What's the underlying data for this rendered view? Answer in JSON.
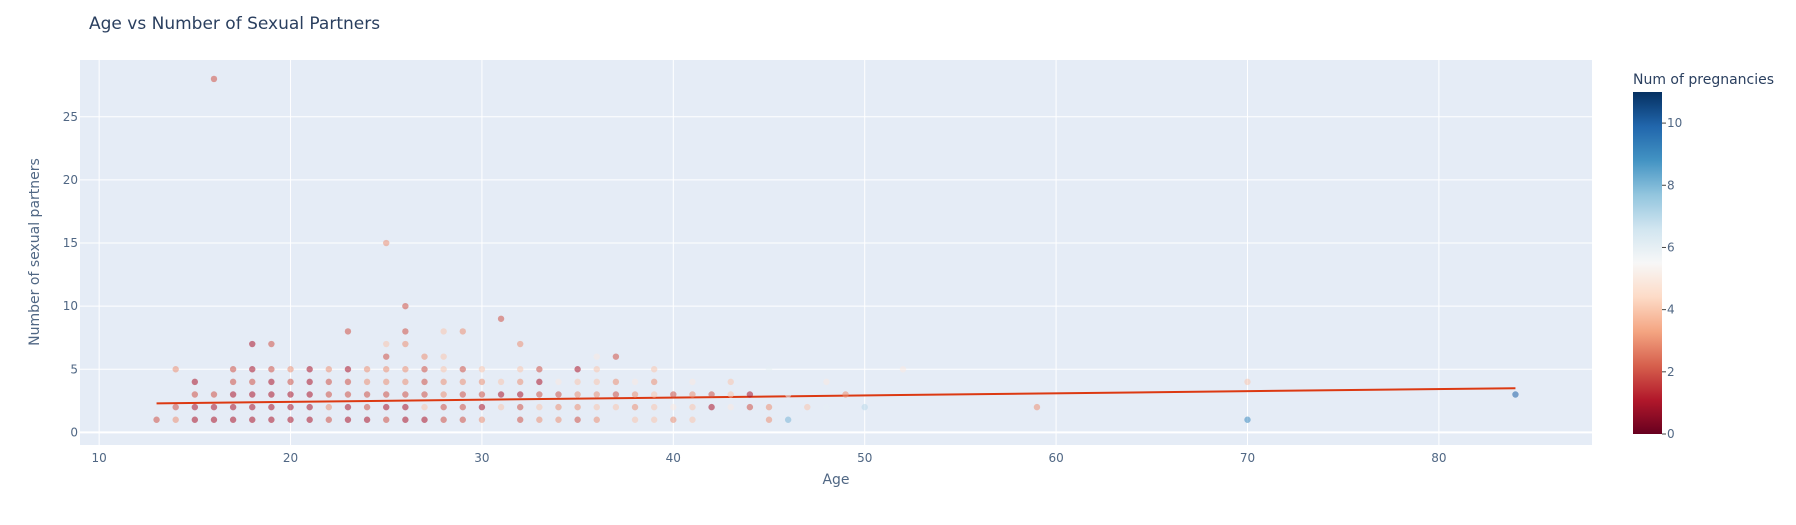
{
  "chart_data": {
    "type": "scatter",
    "title": "Age vs Number of Sexual Partners",
    "xlabel": "Age",
    "ylabel": "Number of sexual partners",
    "xlim": [
      9,
      88
    ],
    "ylim": [
      -1,
      29.5
    ],
    "x_ticks": [
      10,
      20,
      30,
      40,
      50,
      60,
      70,
      80
    ],
    "y_ticks": [
      0,
      5,
      10,
      15,
      20,
      25
    ],
    "grid": true,
    "colorbar": {
      "title": "Num of pregnancies",
      "range": [
        0,
        11
      ],
      "ticks": [
        0,
        2,
        4,
        6,
        8,
        10
      ],
      "colorscale": "RdBu",
      "stops": [
        "#67001f",
        "#b2182b",
        "#d6604d",
        "#f4a582",
        "#fddbc7",
        "#f7f7f7",
        "#d1e5f0",
        "#92c5de",
        "#4393c3",
        "#2166ac",
        "#053061"
      ]
    },
    "trendline": {
      "x": [
        13,
        84
      ],
      "y": [
        2.3,
        3.5
      ],
      "color": "#dc3912"
    },
    "points": [
      [
        13,
        1,
        2
      ],
      [
        14,
        1,
        3
      ],
      [
        14,
        2,
        2
      ],
      [
        14,
        5,
        3
      ],
      [
        15,
        1,
        1
      ],
      [
        15,
        2,
        1
      ],
      [
        15,
        3,
        2
      ],
      [
        15,
        4,
        1
      ],
      [
        16,
        1,
        1
      ],
      [
        16,
        2,
        1
      ],
      [
        16,
        3,
        2
      ],
      [
        16,
        28,
        2
      ],
      [
        17,
        1,
        1
      ],
      [
        17,
        2,
        1
      ],
      [
        17,
        3,
        1
      ],
      [
        17,
        4,
        2
      ],
      [
        17,
        5,
        2
      ],
      [
        18,
        1,
        1
      ],
      [
        18,
        2,
        1
      ],
      [
        18,
        3,
        1
      ],
      [
        18,
        4,
        2
      ],
      [
        18,
        5,
        1
      ],
      [
        18,
        7,
        1
      ],
      [
        19,
        1,
        1
      ],
      [
        19,
        2,
        1
      ],
      [
        19,
        3,
        1
      ],
      [
        19,
        4,
        1
      ],
      [
        19,
        5,
        2
      ],
      [
        19,
        7,
        2
      ],
      [
        20,
        1,
        1
      ],
      [
        20,
        2,
        1
      ],
      [
        20,
        3,
        1
      ],
      [
        20,
        4,
        2
      ],
      [
        20,
        5,
        3
      ],
      [
        21,
        1,
        1
      ],
      [
        21,
        2,
        1
      ],
      [
        21,
        3,
        1
      ],
      [
        21,
        4,
        1
      ],
      [
        21,
        5,
        1
      ],
      [
        22,
        1,
        2
      ],
      [
        22,
        2,
        3
      ],
      [
        22,
        3,
        2
      ],
      [
        22,
        4,
        2
      ],
      [
        22,
        5,
        3
      ],
      [
        23,
        1,
        1
      ],
      [
        23,
        2,
        1
      ],
      [
        23,
        3,
        2
      ],
      [
        23,
        4,
        2
      ],
      [
        23,
        5,
        1
      ],
      [
        23,
        8,
        2
      ],
      [
        24,
        1,
        1
      ],
      [
        24,
        2,
        2
      ],
      [
        24,
        3,
        2
      ],
      [
        24,
        4,
        3
      ],
      [
        24,
        5,
        3
      ],
      [
        25,
        1,
        2
      ],
      [
        25,
        2,
        1
      ],
      [
        25,
        3,
        2
      ],
      [
        25,
        4,
        3
      ],
      [
        25,
        5,
        3
      ],
      [
        25,
        6,
        2
      ],
      [
        25,
        7,
        4
      ],
      [
        25,
        15,
        3
      ],
      [
        26,
        1,
        1
      ],
      [
        26,
        2,
        1
      ],
      [
        26,
        3,
        2
      ],
      [
        26,
        4,
        3
      ],
      [
        26,
        5,
        3
      ],
      [
        26,
        7,
        3
      ],
      [
        26,
        8,
        2
      ],
      [
        26,
        10,
        2
      ],
      [
        27,
        1,
        1
      ],
      [
        27,
        2,
        4
      ],
      [
        27,
        3,
        2
      ],
      [
        27,
        4,
        2
      ],
      [
        27,
        5,
        2
      ],
      [
        27,
        6,
        3
      ],
      [
        28,
        1,
        2
      ],
      [
        28,
        2,
        2
      ],
      [
        28,
        3,
        3
      ],
      [
        28,
        4,
        3
      ],
      [
        28,
        5,
        4
      ],
      [
        28,
        6,
        4
      ],
      [
        28,
        8,
        4
      ],
      [
        29,
        1,
        2
      ],
      [
        29,
        2,
        2
      ],
      [
        29,
        3,
        2
      ],
      [
        29,
        4,
        3
      ],
      [
        29,
        5,
        2
      ],
      [
        29,
        8,
        3
      ],
      [
        30,
        1,
        3
      ],
      [
        30,
        2,
        1
      ],
      [
        30,
        3,
        2
      ],
      [
        30,
        4,
        3
      ],
      [
        30,
        5,
        4
      ],
      [
        31,
        2,
        4
      ],
      [
        31,
        3,
        1
      ],
      [
        31,
        4,
        4
      ],
      [
        31,
        9,
        2
      ],
      [
        32,
        1,
        2
      ],
      [
        32,
        2,
        2
      ],
      [
        32,
        3,
        1
      ],
      [
        32,
        4,
        3
      ],
      [
        32,
        5,
        4
      ],
      [
        32,
        7,
        3
      ],
      [
        33,
        1,
        3
      ],
      [
        33,
        2,
        4
      ],
      [
        33,
        3,
        2
      ],
      [
        33,
        4,
        1
      ],
      [
        33,
        5,
        2
      ],
      [
        34,
        1,
        3
      ],
      [
        34,
        2,
        3
      ],
      [
        34,
        3,
        2
      ],
      [
        34,
        4,
        5
      ],
      [
        35,
        1,
        2
      ],
      [
        35,
        2,
        3
      ],
      [
        35,
        3,
        3
      ],
      [
        35,
        4,
        4
      ],
      [
        35,
        5,
        1
      ],
      [
        36,
        1,
        3
      ],
      [
        36,
        2,
        4
      ],
      [
        36,
        3,
        3
      ],
      [
        36,
        4,
        4
      ],
      [
        36,
        5,
        4
      ],
      [
        36,
        6,
        5
      ],
      [
        37,
        2,
        4
      ],
      [
        37,
        3,
        2
      ],
      [
        37,
        4,
        3
      ],
      [
        37,
        6,
        2
      ],
      [
        38,
        1,
        4
      ],
      [
        38,
        2,
        3
      ],
      [
        38,
        3,
        3
      ],
      [
        38,
        4,
        5
      ],
      [
        39,
        1,
        4
      ],
      [
        39,
        2,
        4
      ],
      [
        39,
        3,
        4
      ],
      [
        39,
        4,
        3
      ],
      [
        39,
        5,
        4
      ],
      [
        40,
        1,
        3
      ],
      [
        40,
        2,
        5
      ],
      [
        40,
        3,
        2
      ],
      [
        41,
        1,
        4
      ],
      [
        41,
        2,
        4
      ],
      [
        41,
        3,
        3
      ],
      [
        41,
        4,
        5
      ],
      [
        42,
        2,
        1
      ],
      [
        42,
        3,
        2
      ],
      [
        43,
        2,
        5
      ],
      [
        43,
        3,
        4
      ],
      [
        43,
        4,
        4
      ],
      [
        44,
        2,
        2
      ],
      [
        44,
        3,
        1
      ],
      [
        45,
        1,
        3
      ],
      [
        45,
        2,
        3
      ],
      [
        45,
        5,
        6
      ],
      [
        46,
        1,
        8
      ],
      [
        46,
        3,
        6
      ],
      [
        47,
        2,
        4
      ],
      [
        48,
        2,
        6
      ],
      [
        48,
        4,
        5
      ],
      [
        49,
        3,
        3
      ],
      [
        50,
        2,
        7
      ],
      [
        52,
        5,
        5
      ],
      [
        59,
        2,
        3
      ],
      [
        70,
        1,
        9
      ],
      [
        70,
        4,
        4
      ],
      [
        84,
        3,
        10
      ]
    ]
  }
}
